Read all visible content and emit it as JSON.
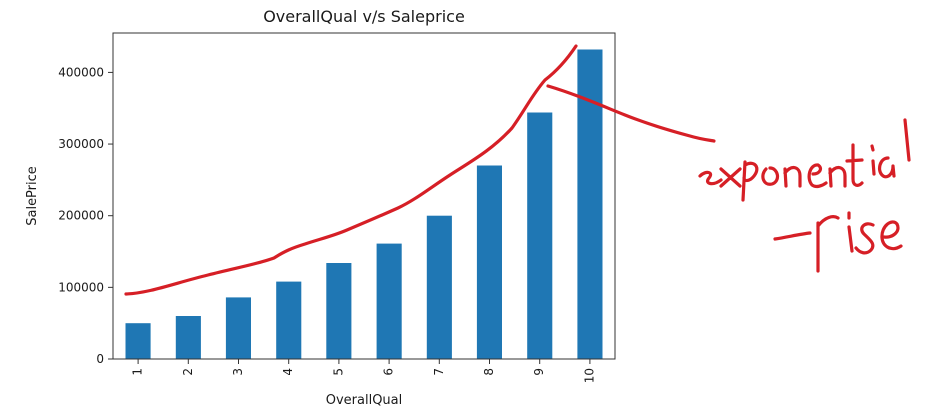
{
  "chart_data": {
    "type": "bar",
    "title": "OverallQual v/s Saleprice",
    "xlabel": "OverallQual",
    "ylabel": "SalePrice",
    "categories": [
      "1",
      "2",
      "3",
      "4",
      "5",
      "6",
      "7",
      "8",
      "9",
      "10"
    ],
    "values": [
      50000,
      60000,
      86000,
      108000,
      134000,
      161000,
      200000,
      270000,
      344000,
      432000
    ],
    "ylim": [
      0,
      455000
    ],
    "yticks": [
      0,
      100000,
      200000,
      300000,
      400000
    ],
    "ytick_labels": [
      "0",
      "100000",
      "200000",
      "300000",
      "400000"
    ],
    "grid": false,
    "bar_color": "#1f77b4"
  },
  "annotation": {
    "ink_color": "#d61f26",
    "handwritten_lines": [
      "exponential",
      "rise"
    ]
  }
}
